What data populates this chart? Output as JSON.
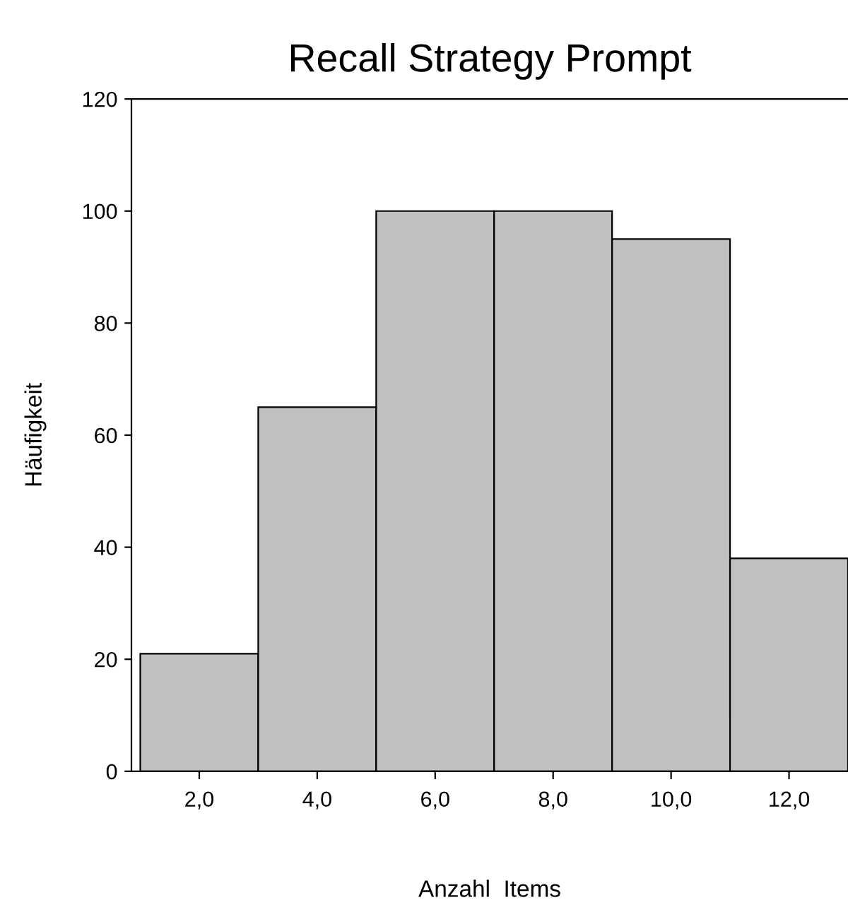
{
  "chart_data": {
    "type": "histogram",
    "title": "Recall Strategy Prompt",
    "xlabel": "Anzahl  Items",
    "ylabel": "Häufigkeit",
    "bins": [
      1,
      3,
      5,
      7,
      9,
      11,
      13
    ],
    "values": [
      21,
      65,
      100,
      100,
      95,
      38
    ],
    "color": "#c0c0c0",
    "xlim": [
      0.85,
      13
    ],
    "xticks": [
      {
        "value": 2,
        "label": "2,0"
      },
      {
        "value": 4,
        "label": "4,0"
      },
      {
        "value": 6,
        "label": "6,0"
      },
      {
        "value": 8,
        "label": "8,0"
      },
      {
        "value": 10,
        "label": "10,0"
      },
      {
        "value": 12,
        "label": "12,0"
      }
    ],
    "ylim": [
      0,
      120
    ],
    "yticks": [
      0,
      20,
      40,
      60,
      80,
      100,
      120
    ],
    "grid": false,
    "legend": false
  }
}
